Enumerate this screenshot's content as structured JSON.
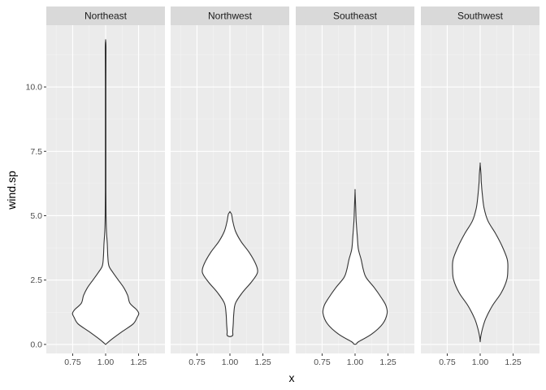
{
  "chart_data": {
    "type": "violin",
    "title": "",
    "xlabel": "x",
    "ylabel": "wind.sp",
    "ylim": [
      -0.35,
      12.4
    ],
    "xlim": [
      0.55,
      1.45
    ],
    "y_ticks": [
      0.0,
      2.5,
      5.0,
      7.5,
      10.0
    ],
    "y_tick_labels": [
      "0.0",
      "2.5",
      "5.0",
      "7.5",
      "10.0"
    ],
    "x_ticks": [
      0.75,
      1.0,
      1.25
    ],
    "x_tick_labels": [
      "0.75",
      "1.00",
      "1.25"
    ],
    "grid": true,
    "facets": [
      {
        "name": "Northeast",
        "x": 1.0,
        "profile": [
          [
            0.0,
            0.0
          ],
          [
            0.2,
            0.11
          ],
          [
            0.5,
            0.3
          ],
          [
            0.8,
            0.5
          ],
          [
            1.05,
            0.57
          ],
          [
            1.2,
            0.6
          ],
          [
            1.35,
            0.56
          ],
          [
            1.6,
            0.44
          ],
          [
            1.9,
            0.4
          ],
          [
            2.2,
            0.33
          ],
          [
            2.5,
            0.23
          ],
          [
            2.8,
            0.13
          ],
          [
            3.05,
            0.06
          ],
          [
            3.4,
            0.04
          ],
          [
            3.9,
            0.03
          ],
          [
            4.4,
            0.015
          ],
          [
            5.0,
            0.008
          ],
          [
            6.0,
            0.005
          ],
          [
            8.0,
            0.005
          ],
          [
            10.0,
            0.005
          ],
          [
            11.5,
            0.007
          ],
          [
            11.8,
            0.0
          ]
        ]
      },
      {
        "name": "Northwest",
        "x": 1.0,
        "profile": [
          [
            0.3,
            0.0
          ],
          [
            0.35,
            0.05
          ],
          [
            0.5,
            0.05
          ],
          [
            0.8,
            0.06
          ],
          [
            1.2,
            0.07
          ],
          [
            1.6,
            0.1
          ],
          [
            2.0,
            0.22
          ],
          [
            2.4,
            0.38
          ],
          [
            2.7,
            0.48
          ],
          [
            2.9,
            0.5
          ],
          [
            3.2,
            0.45
          ],
          [
            3.6,
            0.34
          ],
          [
            4.0,
            0.2
          ],
          [
            4.4,
            0.1
          ],
          [
            4.8,
            0.05
          ],
          [
            5.05,
            0.03
          ],
          [
            5.15,
            0.0
          ]
        ]
      },
      {
        "name": "Southeast",
        "x": 1.0,
        "profile": [
          [
            0.0,
            0.0
          ],
          [
            0.03,
            0.03
          ],
          [
            0.1,
            0.06
          ],
          [
            0.4,
            0.3
          ],
          [
            0.8,
            0.5
          ],
          [
            1.2,
            0.58
          ],
          [
            1.5,
            0.56
          ],
          [
            1.8,
            0.48
          ],
          [
            2.2,
            0.35
          ],
          [
            2.6,
            0.2
          ],
          [
            2.9,
            0.15
          ],
          [
            3.3,
            0.11
          ],
          [
            3.7,
            0.06
          ],
          [
            4.2,
            0.04
          ],
          [
            4.8,
            0.02
          ],
          [
            5.4,
            0.01
          ],
          [
            5.95,
            0.0
          ]
        ]
      },
      {
        "name": "Southwest",
        "x": 1.0,
        "profile": [
          [
            0.1,
            0.0
          ],
          [
            0.3,
            0.01
          ],
          [
            0.6,
            0.04
          ],
          [
            1.0,
            0.1
          ],
          [
            1.5,
            0.22
          ],
          [
            2.0,
            0.38
          ],
          [
            2.5,
            0.48
          ],
          [
            2.9,
            0.5
          ],
          [
            3.3,
            0.49
          ],
          [
            3.8,
            0.4
          ],
          [
            4.3,
            0.28
          ],
          [
            4.8,
            0.14
          ],
          [
            5.3,
            0.07
          ],
          [
            5.8,
            0.04
          ],
          [
            6.3,
            0.02
          ],
          [
            6.6,
            0.015
          ],
          [
            7.0,
            0.0
          ]
        ]
      }
    ]
  }
}
